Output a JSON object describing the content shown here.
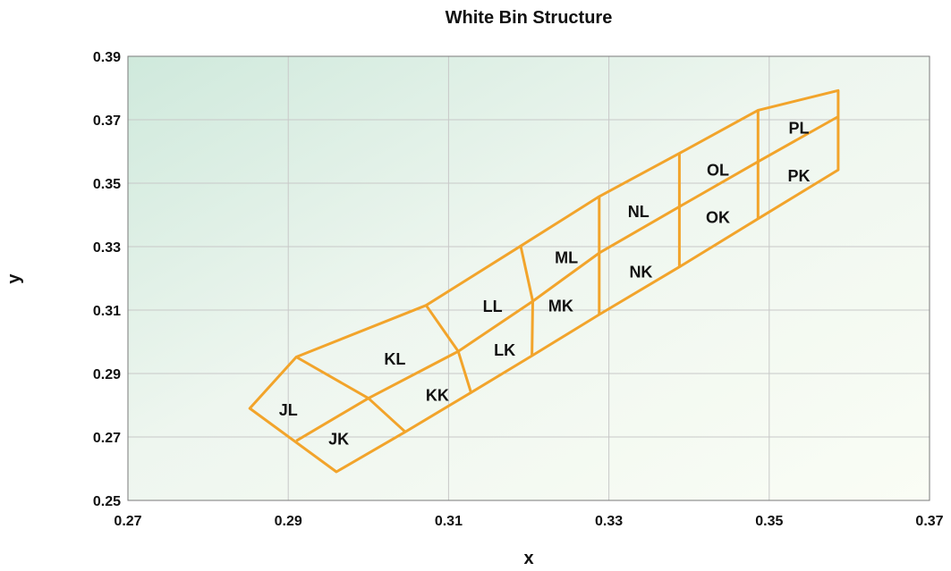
{
  "chart_data": {
    "type": "diagram",
    "title": "White Bin Structure",
    "xlabel": "x",
    "ylabel": "y",
    "xlim": [
      0.27,
      0.37
    ],
    "ylim": [
      0.25,
      0.39
    ],
    "xticks": [
      "0.27",
      "0.29",
      "0.31",
      "0.33",
      "0.35",
      "0.37"
    ],
    "yticks": [
      "0.25",
      "0.27",
      "0.29",
      "0.31",
      "0.33",
      "0.35",
      "0.37",
      "0.39"
    ],
    "grid": true,
    "line_color": "#f2a42b",
    "outline_top": [
      [
        0.2852,
        0.279
      ],
      [
        0.291,
        0.2952
      ],
      [
        0.3072,
        0.3115
      ],
      [
        0.319,
        0.3302
      ],
      [
        0.3288,
        0.3458
      ],
      [
        0.3388,
        0.3594
      ],
      [
        0.3486,
        0.373
      ],
      [
        0.3586,
        0.3792
      ]
    ],
    "outline_bottom": [
      [
        0.3586,
        0.3542
      ],
      [
        0.3486,
        0.3388
      ],
      [
        0.3388,
        0.3236
      ],
      [
        0.3288,
        0.3086
      ],
      [
        0.3204,
        0.2956
      ],
      [
        0.3128,
        0.284
      ],
      [
        0.3046,
        0.2716
      ],
      [
        0.296,
        0.259
      ],
      [
        0.2852,
        0.279
      ]
    ],
    "midline": [
      [
        0.291,
        0.2688
      ],
      [
        0.3,
        0.2822
      ],
      [
        0.3112,
        0.297
      ],
      [
        0.3205,
        0.3128
      ],
      [
        0.3288,
        0.328
      ],
      [
        0.3388,
        0.3426
      ],
      [
        0.3486,
        0.3568
      ],
      [
        0.3586,
        0.371
      ]
    ],
    "dividers": [
      [
        [
          0.291,
          0.2952
        ],
        [
          0.3,
          0.2822
        ],
        [
          0.3046,
          0.2716
        ]
      ],
      [
        [
          0.3072,
          0.3115
        ],
        [
          0.3112,
          0.297
        ],
        [
          0.3128,
          0.284
        ]
      ],
      [
        [
          0.319,
          0.3302
        ],
        [
          0.3205,
          0.3128
        ],
        [
          0.3204,
          0.2956
        ]
      ],
      [
        [
          0.3288,
          0.3458
        ],
        [
          0.3288,
          0.328
        ],
        [
          0.3288,
          0.3086
        ]
      ],
      [
        [
          0.3388,
          0.3594
        ],
        [
          0.3388,
          0.3426
        ],
        [
          0.3388,
          0.3236
        ]
      ],
      [
        [
          0.3486,
          0.373
        ],
        [
          0.3486,
          0.3568
        ],
        [
          0.3486,
          0.3388
        ]
      ]
    ],
    "bins": [
      {
        "label": "JL",
        "x": 0.29,
        "y": 0.2788
      },
      {
        "label": "JK",
        "x": 0.2963,
        "y": 0.2696
      },
      {
        "label": "KL",
        "x": 0.3033,
        "y": 0.2948
      },
      {
        "label": "KK",
        "x": 0.3086,
        "y": 0.2834
      },
      {
        "label": "LL",
        "x": 0.3155,
        "y": 0.3114
      },
      {
        "label": "LK",
        "x": 0.317,
        "y": 0.2976
      },
      {
        "label": "ML",
        "x": 0.3247,
        "y": 0.3268
      },
      {
        "label": "MK",
        "x": 0.324,
        "y": 0.3116
      },
      {
        "label": "NL",
        "x": 0.3337,
        "y": 0.3412
      },
      {
        "label": "NK",
        "x": 0.334,
        "y": 0.3222
      },
      {
        "label": "OL",
        "x": 0.3436,
        "y": 0.3544
      },
      {
        "label": "OK",
        "x": 0.3436,
        "y": 0.3394
      },
      {
        "label": "PL",
        "x": 0.3537,
        "y": 0.3676
      },
      {
        "label": "PK",
        "x": 0.3537,
        "y": 0.3526
      }
    ]
  }
}
